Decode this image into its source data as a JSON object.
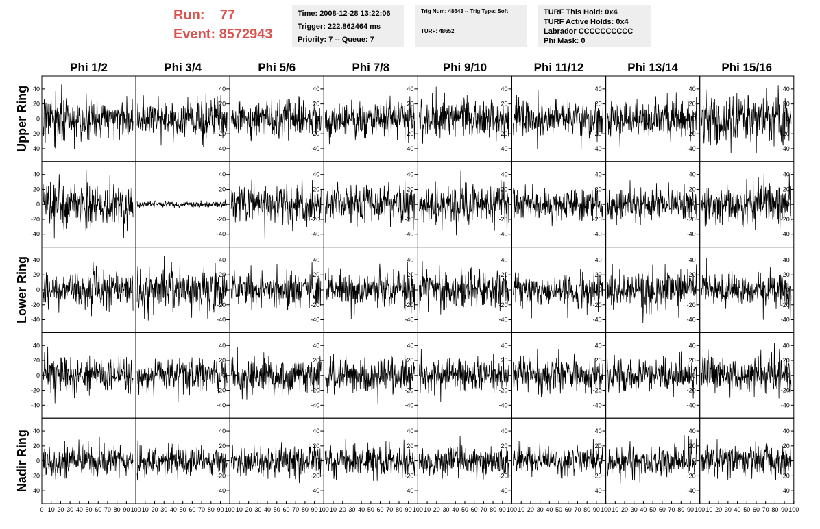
{
  "header": {
    "run_label": "Run:",
    "run_value": "77",
    "event_label": "Event:",
    "event_value": "8572943"
  },
  "info_time": {
    "time": "Time: 2008-12-28 13:22:06",
    "trigger": "Trigger: 222.862464 ms",
    "priority": "Priority: 7 -- Queue: 7"
  },
  "info_trig": {
    "trig_line": "Trig Num: 48643 -- Trig Type: Soft",
    "turf_line": "TURF: 48652"
  },
  "info_turf": {
    "this_hold": "TURF This Hold: 0x4",
    "active_holds": "TURF Active Holds: 0x4",
    "labrador": "Labrador CCCCCCCCCC",
    "phi_mask": "Phi Mask: 0"
  },
  "chart_data": {
    "type": "line",
    "columns": [
      "Phi 1/2",
      "Phi 3/4",
      "Phi 5/6",
      "Phi 7/8",
      "Phi 9/10",
      "Phi 11/12",
      "Phi 13/14",
      "Phi 15/16"
    ],
    "rows": [
      "Upper Ring",
      "",
      "Lower Ring",
      "",
      "Nadir Ring"
    ],
    "xlim": [
      0,
      100
    ],
    "ylim": [
      -50,
      50
    ],
    "x_ticks": [
      0,
      10,
      20,
      30,
      40,
      50,
      60,
      70,
      80,
      90,
      100
    ],
    "y_ticks": [
      -40,
      -20,
      0,
      20,
      40
    ],
    "samples_per_trace": 260,
    "trace_amplitude": [
      [
        14,
        14,
        13,
        12,
        13,
        13,
        13,
        16
      ],
      [
        15,
        2,
        13,
        13,
        14,
        11,
        12,
        14
      ],
      [
        13,
        14,
        12,
        12,
        13,
        11,
        12,
        11
      ],
      [
        12,
        11,
        12,
        12,
        11,
        11,
        11,
        13
      ],
      [
        11,
        10,
        10,
        10,
        10,
        10,
        10,
        11
      ]
    ],
    "line_color": "#000000",
    "grid": false
  }
}
